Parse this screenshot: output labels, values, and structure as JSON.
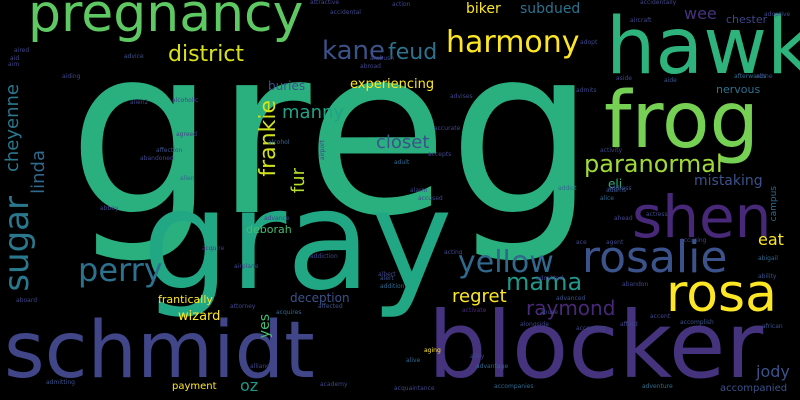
{
  "words": [
    {
      "text": "greg",
      "color": "#2ab07f"
    },
    {
      "text": "gray",
      "color": "#22a785"
    },
    {
      "text": "hawk",
      "color": "#2eb37c"
    },
    {
      "text": "pregnancy",
      "color": "#5ec962"
    },
    {
      "text": "frog",
      "color": "#75d054"
    },
    {
      "text": "schmidt",
      "color": "#404688"
    },
    {
      "text": "blocker",
      "color": "#46337e"
    },
    {
      "text": "rosa",
      "color": "#fde725"
    },
    {
      "text": "shen",
      "color": "#482878"
    },
    {
      "text": "rosalie",
      "color": "#3b528b"
    },
    {
      "text": "perry",
      "color": "#2c728e"
    },
    {
      "text": "sugar",
      "color": "#2a788e"
    },
    {
      "text": "yellow",
      "color": "#31688e"
    },
    {
      "text": "harmony",
      "color": "#fde725"
    },
    {
      "text": "kane",
      "color": "#3b528b"
    },
    {
      "text": "feud",
      "color": "#2c728e"
    },
    {
      "text": "district",
      "color": "#d8e219"
    },
    {
      "text": "paranormal",
      "color": "#a0da39"
    },
    {
      "text": "mama",
      "color": "#1f988b"
    },
    {
      "text": "frankie",
      "color": "#d2e21b"
    },
    {
      "text": "cheyenne",
      "color": "#2a788e"
    },
    {
      "text": "regret",
      "color": "#fde725"
    },
    {
      "text": "raymond",
      "color": "#482878"
    },
    {
      "text": "closet",
      "color": "#3b528b"
    },
    {
      "text": "linda",
      "color": "#31688e"
    },
    {
      "text": "manny",
      "color": "#20a386"
    },
    {
      "text": "fur",
      "color": "#b5de2b"
    },
    {
      "text": "mistaking",
      "color": "#3b528b"
    },
    {
      "text": "subdued",
      "color": "#2c728e"
    },
    {
      "text": "biker",
      "color": "#fde725"
    },
    {
      "text": "wee",
      "color": "#46337e"
    },
    {
      "text": "chester",
      "color": "#404688"
    },
    {
      "text": "experiencing",
      "color": "#fde725"
    },
    {
      "text": "buries",
      "color": "#3b528b"
    },
    {
      "text": "eat",
      "color": "#fde725"
    },
    {
      "text": "eli",
      "color": "#2ab07f"
    },
    {
      "text": "nervous",
      "color": "#2c728e"
    },
    {
      "text": "wizard",
      "color": "#fde725"
    },
    {
      "text": "yes",
      "color": "#44bf70"
    },
    {
      "text": "deception",
      "color": "#3b528b"
    },
    {
      "text": "frantically",
      "color": "#fde725"
    },
    {
      "text": "oz",
      "color": "#1f988b"
    },
    {
      "text": "payment",
      "color": "#fde725"
    },
    {
      "text": "jody",
      "color": "#3b528b"
    },
    {
      "text": "deborah",
      "color": "#44bf70"
    },
    {
      "text": "campus",
      "color": "#31688e"
    },
    {
      "text": "accompanied",
      "color": "#3b528b"
    },
    {
      "text": "action",
      "color": "#404688"
    },
    {
      "text": "accidentally",
      "color": "#404688"
    },
    {
      "text": "afterwards",
      "color": "#31688e"
    },
    {
      "text": "alone",
      "color": "#3b528b"
    },
    {
      "text": "acquire",
      "color": "#46337e"
    },
    {
      "text": "admits",
      "color": "#404688"
    },
    {
      "text": "alcoholic",
      "color": "#404688"
    },
    {
      "text": "activate",
      "color": "#482878"
    },
    {
      "text": "addition",
      "color": "#31688e"
    },
    {
      "text": "advanced",
      "color": "#3b528b"
    },
    {
      "text": "adventure",
      "color": "#2c728e"
    },
    {
      "text": "airplane",
      "color": "#404688"
    },
    {
      "text": "acquires",
      "color": "#31688e"
    },
    {
      "text": "african",
      "color": "#3b528b"
    },
    {
      "text": "abandon",
      "color": "#404688"
    },
    {
      "text": "acting",
      "color": "#404688"
    },
    {
      "text": "ability",
      "color": "#3b528b"
    },
    {
      "text": "abandoned",
      "color": "#404688"
    },
    {
      "text": "accepting",
      "color": "#404688"
    },
    {
      "text": "affection",
      "color": "#3b528b"
    },
    {
      "text": "advantage",
      "color": "#31688e"
    },
    {
      "text": "airport",
      "color": "#404688"
    },
    {
      "text": "alien",
      "color": "#31688e"
    },
    {
      "text": "actress",
      "color": "#404688"
    },
    {
      "text": "activity",
      "color": "#404688"
    },
    {
      "text": "alarm",
      "color": "#404688"
    },
    {
      "text": "adams",
      "color": "#3b528b"
    },
    {
      "text": "agent",
      "color": "#404688"
    },
    {
      "text": "abigail",
      "color": "#31688e"
    },
    {
      "text": "alliance",
      "color": "#404688"
    },
    {
      "text": "academy",
      "color": "#404688"
    },
    {
      "text": "aging",
      "color": "#fde725"
    },
    {
      "text": "acquaintance",
      "color": "#404688"
    },
    {
      "text": "accompanies",
      "color": "#31688e"
    },
    {
      "text": "advice",
      "color": "#3b528b"
    },
    {
      "text": "accused",
      "color": "#404688"
    },
    {
      "text": "admitting",
      "color": "#3b528b"
    },
    {
      "text": "accepts",
      "color": "#404688"
    },
    {
      "text": "aboard",
      "color": "#404688"
    },
    {
      "text": "adult",
      "color": "#31688e"
    },
    {
      "text": "addict",
      "color": "#31688e"
    },
    {
      "text": "accidental",
      "color": "#404688"
    },
    {
      "text": "address",
      "color": "#3b528b"
    },
    {
      "text": "alice",
      "color": "#31688e"
    },
    {
      "text": "aired",
      "color": "#404688"
    },
    {
      "text": "advises",
      "color": "#404688"
    },
    {
      "text": "alcohol",
      "color": "#31688e"
    },
    {
      "text": "affected",
      "color": "#3b528b"
    },
    {
      "text": "abuse",
      "color": "#404688"
    },
    {
      "text": "admitted",
      "color": "#404688"
    },
    {
      "text": "afford",
      "color": "#404688"
    },
    {
      "text": "aid",
      "color": "#404688"
    },
    {
      "text": "aim",
      "color": "#404688"
    },
    {
      "text": "accomplish",
      "color": "#3b528b"
    },
    {
      "text": "accusing",
      "color": "#404688"
    },
    {
      "text": "alive",
      "color": "#31688e"
    },
    {
      "text": "aiding",
      "color": "#404688"
    },
    {
      "text": "alert",
      "color": "#3b528b"
    },
    {
      "text": "abbey",
      "color": "#404688"
    },
    {
      "text": "aside",
      "color": "#404688"
    },
    {
      "text": "adoptive",
      "color": "#404688"
    },
    {
      "text": "aircraft",
      "color": "#404688"
    },
    {
      "text": "attractive",
      "color": "#404688"
    },
    {
      "text": "adopt",
      "color": "#404688"
    },
    {
      "text": "aide",
      "color": "#3b528b"
    },
    {
      "text": "albert",
      "color": "#404688"
    },
    {
      "text": "ambush",
      "color": "#404688"
    },
    {
      "text": "ahead",
      "color": "#404688"
    },
    {
      "text": "advance",
      "color": "#404688"
    },
    {
      "text": "accent",
      "color": "#404688"
    },
    {
      "text": "alien2",
      "color": "#404688"
    },
    {
      "text": "addiction",
      "color": "#404688"
    },
    {
      "text": "accurate",
      "color": "#404688"
    },
    {
      "text": "agreed",
      "color": "#404688"
    },
    {
      "text": "alongside",
      "color": "#404688"
    },
    {
      "text": "attorney",
      "color": "#404688"
    },
    {
      "text": "abroad",
      "color": "#404688"
    },
    {
      "text": "ace",
      "color": "#404688"
    },
    {
      "text": "alley",
      "color": "#404688"
    }
  ]
}
